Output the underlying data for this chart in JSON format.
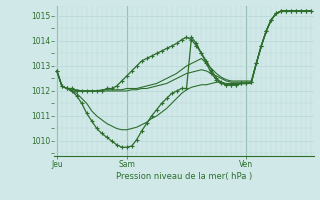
{
  "bg_color": "#d0e8e8",
  "grid_color": "#b8d8d8",
  "line_color": "#2d6e2d",
  "title": "Pression niveau de la mer( hPa )",
  "ylim": [
    1009.4,
    1015.4
  ],
  "yticks": [
    1010,
    1011,
    1012,
    1013,
    1014,
    1015
  ],
  "xtick_labels": [
    "Jeu",
    "Sam",
    "Ven"
  ],
  "xtick_positions": [
    0,
    14,
    38
  ],
  "total_points": 52,
  "series": [
    {
      "data": [
        1012.8,
        1012.2,
        1012.1,
        1012.1,
        1012.0,
        1012.0,
        1012.0,
        1012.0,
        1012.0,
        1012.0,
        1012.1,
        1012.1,
        1012.2,
        1012.4,
        1012.6,
        1012.8,
        1013.0,
        1013.2,
        1013.3,
        1013.4,
        1013.5,
        1013.6,
        1013.7,
        1013.8,
        1013.9,
        1014.05,
        1014.15,
        1014.05,
        1013.8,
        1013.5,
        1013.2,
        1012.85,
        1012.5,
        1012.35,
        1012.25,
        1012.25,
        1012.25,
        1012.3,
        1012.3,
        1012.35,
        1013.1,
        1013.8,
        1014.4,
        1014.85,
        1015.1,
        1015.2,
        1015.2,
        1015.2,
        1015.2,
        1015.2,
        1015.2,
        1015.2
      ],
      "marker": true,
      "lw": 0.9
    },
    {
      "data": [
        1012.8,
        1012.2,
        1012.1,
        1012.0,
        1011.8,
        1011.5,
        1011.1,
        1010.8,
        1010.5,
        1010.3,
        1010.15,
        1010.0,
        1009.85,
        1009.75,
        1009.75,
        1009.8,
        1010.05,
        1010.4,
        1010.7,
        1011.0,
        1011.25,
        1011.5,
        1011.7,
        1011.9,
        1012.0,
        1012.1,
        1012.1,
        1014.15,
        1013.9,
        1013.5,
        1013.1,
        1012.7,
        1012.45,
        1012.3,
        1012.25,
        1012.25,
        1012.25,
        1012.3,
        1012.3,
        1012.35,
        1013.1,
        1013.8,
        1014.4,
        1014.85,
        1015.1,
        1015.2,
        1015.2,
        1015.2,
        1015.2,
        1015.2,
        1015.2,
        1015.2
      ],
      "marker": true,
      "lw": 0.9
    },
    {
      "data": [
        1012.8,
        1012.2,
        1012.1,
        1012.0,
        1011.9,
        1011.7,
        1011.5,
        1011.2,
        1011.0,
        1010.85,
        1010.7,
        1010.6,
        1010.5,
        1010.45,
        1010.45,
        1010.5,
        1010.55,
        1010.65,
        1010.75,
        1010.9,
        1011.0,
        1011.15,
        1011.3,
        1011.5,
        1011.7,
        1011.9,
        1012.05,
        1012.15,
        1012.2,
        1012.25,
        1012.25,
        1012.3,
        1012.35,
        1012.35,
        1012.3,
        1012.3,
        1012.3,
        1012.3,
        1012.3,
        1012.3,
        1013.1,
        1013.8,
        1014.4,
        1014.85,
        1015.1,
        1015.2,
        1015.2,
        1015.2,
        1015.2,
        1015.2,
        1015.2,
        1015.2
      ],
      "marker": false,
      "lw": 0.8
    },
    {
      "data": [
        1012.8,
        1012.2,
        1012.1,
        1012.0,
        1012.0,
        1012.0,
        1012.0,
        1012.0,
        1012.0,
        1012.05,
        1012.05,
        1012.05,
        1012.05,
        1012.05,
        1012.1,
        1012.1,
        1012.1,
        1012.15,
        1012.2,
        1012.25,
        1012.3,
        1012.4,
        1012.5,
        1012.6,
        1012.7,
        1012.85,
        1013.0,
        1013.1,
        1013.2,
        1013.3,
        1013.1,
        1012.9,
        1012.7,
        1012.55,
        1012.45,
        1012.4,
        1012.4,
        1012.4,
        1012.4,
        1012.4,
        1013.1,
        1013.8,
        1014.4,
        1014.85,
        1015.1,
        1015.2,
        1015.2,
        1015.2,
        1015.2,
        1015.2,
        1015.2,
        1015.2
      ],
      "marker": false,
      "lw": 0.8
    },
    {
      "data": [
        1012.8,
        1012.2,
        1012.1,
        1012.05,
        1012.05,
        1012.0,
        1012.0,
        1012.0,
        1012.0,
        1012.0,
        1012.0,
        1012.0,
        1012.0,
        1012.0,
        1012.0,
        1012.05,
        1012.05,
        1012.1,
        1012.1,
        1012.15,
        1012.2,
        1012.25,
        1012.3,
        1012.4,
        1012.5,
        1012.6,
        1012.7,
        1012.75,
        1012.8,
        1012.85,
        1012.8,
        1012.7,
        1012.6,
        1012.5,
        1012.4,
        1012.35,
        1012.35,
        1012.35,
        1012.35,
        1012.35,
        1013.1,
        1013.8,
        1014.4,
        1014.85,
        1015.1,
        1015.2,
        1015.2,
        1015.2,
        1015.2,
        1015.2,
        1015.2,
        1015.2
      ],
      "marker": false,
      "lw": 0.8
    }
  ]
}
